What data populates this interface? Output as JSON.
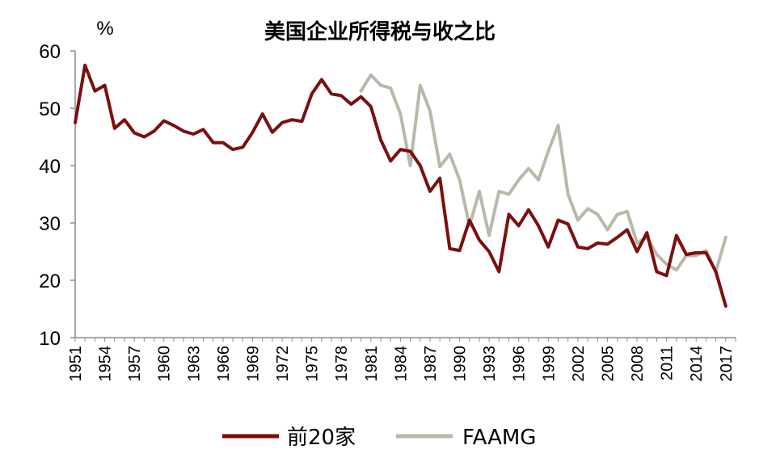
{
  "chart_data": {
    "type": "line",
    "title": "美国企业所得税与收之比",
    "ylabel": "%",
    "xlabel": "",
    "ylim": [
      10,
      60
    ],
    "yticks": [
      10,
      20,
      30,
      40,
      50,
      60
    ],
    "xlim": [
      1951,
      2018
    ],
    "xticks": [
      "1951",
      "1954",
      "1957",
      "1960",
      "1963",
      "1966",
      "1969",
      "1972",
      "1975",
      "1978",
      "1981",
      "1984",
      "1987",
      "1990",
      "1993",
      "1996",
      "1999",
      "2002",
      "2005",
      "2008",
      "2011",
      "2014",
      "2017"
    ],
    "grid": false,
    "legend_position": "bottom",
    "series": [
      {
        "name": "前20家",
        "color": "#7b0f0f",
        "x": [
          1951,
          1952,
          1953,
          1954,
          1955,
          1956,
          1957,
          1958,
          1959,
          1960,
          1961,
          1962,
          1963,
          1964,
          1965,
          1966,
          1967,
          1968,
          1969,
          1970,
          1971,
          1972,
          1973,
          1974,
          1975,
          1976,
          1977,
          1978,
          1979,
          1980,
          1981,
          1982,
          1983,
          1984,
          1985,
          1986,
          1987,
          1988,
          1989,
          1990,
          1991,
          1992,
          1993,
          1994,
          1995,
          1996,
          1997,
          1998,
          1999,
          2000,
          2001,
          2002,
          2003,
          2004,
          2005,
          2006,
          2007,
          2008,
          2009,
          2010,
          2011,
          2012,
          2013,
          2014,
          2015,
          2016,
          2017
        ],
        "values": [
          47.5,
          57.5,
          53,
          54,
          46.5,
          48,
          45.7,
          45,
          46,
          47.8,
          47,
          46,
          45.5,
          46.3,
          44,
          44,
          42.8,
          43.2,
          45.8,
          49,
          45.8,
          47.5,
          48,
          47.7,
          52.5,
          55,
          52.5,
          52.2,
          50.7,
          52,
          50.3,
          44.5,
          40.8,
          42.8,
          42.5,
          40,
          35.5,
          37.8,
          25.5,
          25.2,
          30.5,
          27,
          25,
          21.5,
          31.5,
          29.5,
          32.3,
          29.5,
          25.8,
          30.5,
          29.8,
          25.8,
          25.5,
          26.5,
          26.3,
          27.5,
          28.8,
          25,
          28.3,
          21.5,
          20.8,
          27.8,
          24.5,
          24.8,
          24.8,
          21.5,
          15.5
        ]
      },
      {
        "name": "FAAMG",
        "color": "#b9b9ab",
        "x": [
          1980,
          1981,
          1982,
          1983,
          1984,
          1985,
          1986,
          1987,
          1988,
          1989,
          1990,
          1991,
          1992,
          1993,
          1994,
          1995,
          1996,
          1997,
          1998,
          1999,
          2000,
          2001,
          2002,
          2003,
          2004,
          2005,
          2006,
          2007,
          2008,
          2009,
          2010,
          2011,
          2012,
          2013,
          2014,
          2015,
          2016,
          2017
        ],
        "values": [
          53,
          55.8,
          54,
          53.5,
          49,
          40,
          54,
          49.5,
          39.8,
          42,
          37.5,
          29.5,
          35.5,
          27.8,
          35.5,
          35,
          37.5,
          39.5,
          37.5,
          42.5,
          47,
          35,
          30.5,
          32.5,
          31.5,
          28.8,
          31.5,
          32,
          26.5,
          27.5,
          24.5,
          22.8,
          21.8,
          24.3,
          24.3,
          25.2,
          21.5,
          27.5
        ]
      }
    ]
  }
}
